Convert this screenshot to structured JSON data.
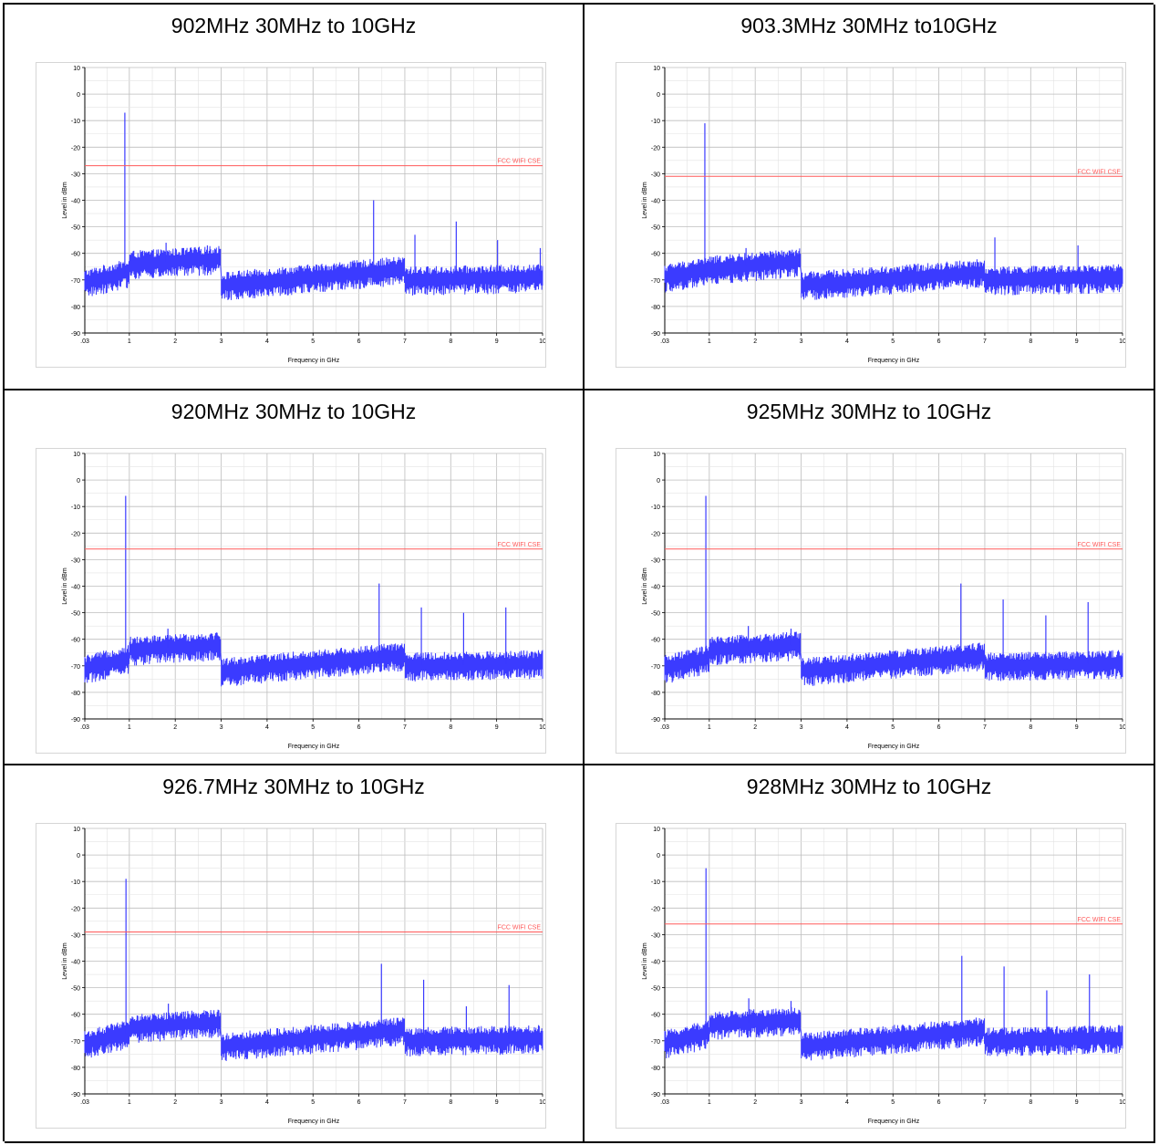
{
  "colors": {
    "trace": "#3b3bff",
    "limit": "#ff5a5a",
    "grid": "#bdbdbd",
    "axis": "#000000"
  },
  "chart_data": [
    {
      "type": "line",
      "title": "902MHz 30MHz to 10GHz",
      "xlabel": "Frequency in GHz",
      "ylabel": "Level in dBm",
      "xlim": [
        0.03,
        10
      ],
      "ylim": [
        -90,
        10
      ],
      "x_ticks": [
        ".03",
        "1",
        "2",
        "3",
        "4",
        "5",
        "6",
        "7",
        "8",
        "9",
        "10"
      ],
      "y_ticks": [
        "10",
        "0",
        "-10",
        "-20",
        "-30",
        "-40",
        "-50",
        "-60",
        "-70",
        "-80",
        "-90"
      ],
      "grid": true,
      "segments": [
        {
          "x": [
            0.03,
            1.0
          ],
          "level": [
            -71,
            -67
          ]
        },
        {
          "x": [
            1.0,
            3.0
          ],
          "level": [
            -64,
            -62
          ]
        },
        {
          "x": [
            3.0,
            7.0
          ],
          "level": [
            -72,
            -66
          ]
        },
        {
          "x": [
            7.0,
            10.0
          ],
          "level": [
            -70,
            -69
          ]
        }
      ],
      "spurs": [
        {
          "x": 0.902,
          "y": -7
        },
        {
          "x": 1.8,
          "y": -56
        },
        {
          "x": 2.7,
          "y": -57
        },
        {
          "x": 6.32,
          "y": -40
        },
        {
          "x": 7.22,
          "y": -53
        },
        {
          "x": 8.12,
          "y": -48
        },
        {
          "x": 9.02,
          "y": -55
        },
        {
          "x": 9.95,
          "y": -58
        }
      ],
      "limit": {
        "name": "FCC WIFI CSE",
        "y": -27
      }
    },
    {
      "type": "line",
      "title": "903.3MHz 30MHz to10GHz",
      "xlabel": "Frequency in GHz",
      "ylabel": "Level in dBm",
      "xlim": [
        0.03,
        10
      ],
      "ylim": [
        -90,
        10
      ],
      "x_ticks": [
        ".03",
        "1",
        "2",
        "3",
        "4",
        "5",
        "6",
        "7",
        "8",
        "9",
        "10"
      ],
      "y_ticks": [
        "10",
        "0",
        "-10",
        "-20",
        "-30",
        "-40",
        "-50",
        "-60",
        "-70",
        "-80",
        "-90"
      ],
      "grid": true,
      "segments": [
        {
          "x": [
            0.03,
            1.0
          ],
          "level": [
            -69,
            -66
          ]
        },
        {
          "x": [
            1.0,
            3.0
          ],
          "level": [
            -66,
            -63
          ]
        },
        {
          "x": [
            3.0,
            7.0
          ],
          "level": [
            -72,
            -67
          ]
        },
        {
          "x": [
            7.0,
            10.0
          ],
          "level": [
            -70,
            -69
          ]
        }
      ],
      "spurs": [
        {
          "x": 0.903,
          "y": -11
        },
        {
          "x": 1.8,
          "y": -58
        },
        {
          "x": 7.22,
          "y": -54
        },
        {
          "x": 9.03,
          "y": -57
        }
      ],
      "limit": {
        "name": "FCC WIFI CSE",
        "y": -31
      }
    },
    {
      "type": "line",
      "title": "920MHz 30MHz to 10GHz",
      "xlabel": "Frequency in GHz",
      "ylabel": "Level in dBm",
      "xlim": [
        0.03,
        10
      ],
      "ylim": [
        -90,
        10
      ],
      "x_ticks": [
        ".03",
        "1",
        "2",
        "3",
        "4",
        "5",
        "6",
        "7",
        "8",
        "9",
        "10"
      ],
      "y_ticks": [
        "10",
        "0",
        "-10",
        "-20",
        "-30",
        "-40",
        "-50",
        "-60",
        "-70",
        "-80",
        "-90"
      ],
      "grid": true,
      "segments": [
        {
          "x": [
            0.03,
            1.0
          ],
          "level": [
            -71,
            -67
          ]
        },
        {
          "x": [
            1.0,
            3.0
          ],
          "level": [
            -64,
            -62
          ]
        },
        {
          "x": [
            3.0,
            7.0
          ],
          "level": [
            -72,
            -66
          ]
        },
        {
          "x": [
            7.0,
            10.0
          ],
          "level": [
            -70,
            -69
          ]
        }
      ],
      "spurs": [
        {
          "x": 0.92,
          "y": -6
        },
        {
          "x": 1.84,
          "y": -56
        },
        {
          "x": 6.44,
          "y": -39
        },
        {
          "x": 7.36,
          "y": -48
        },
        {
          "x": 8.28,
          "y": -50
        },
        {
          "x": 9.2,
          "y": -48
        }
      ],
      "limit": {
        "name": "FCC WIFI CSE",
        "y": -26
      }
    },
    {
      "type": "line",
      "title": "925MHz 30MHz to 10GHz",
      "xlabel": "Frequency in GHz",
      "ylabel": "Level in dBm",
      "xlim": [
        0.03,
        10
      ],
      "ylim": [
        -90,
        10
      ],
      "x_ticks": [
        ".03",
        "1",
        "2",
        "3",
        "4",
        "5",
        "6",
        "7",
        "8",
        "9",
        "10"
      ],
      "y_ticks": [
        "10",
        "0",
        "-10",
        "-20",
        "-30",
        "-40",
        "-50",
        "-60",
        "-70",
        "-80",
        "-90"
      ],
      "grid": true,
      "segments": [
        {
          "x": [
            0.03,
            1.0
          ],
          "level": [
            -71,
            -67
          ]
        },
        {
          "x": [
            1.0,
            3.0
          ],
          "level": [
            -64,
            -62
          ]
        },
        {
          "x": [
            3.0,
            7.0
          ],
          "level": [
            -72,
            -66
          ]
        },
        {
          "x": [
            7.0,
            10.0
          ],
          "level": [
            -70,
            -69
          ]
        }
      ],
      "spurs": [
        {
          "x": 0.925,
          "y": -6
        },
        {
          "x": 1.85,
          "y": -55
        },
        {
          "x": 2.78,
          "y": -56
        },
        {
          "x": 6.48,
          "y": -39
        },
        {
          "x": 7.4,
          "y": -45
        },
        {
          "x": 8.33,
          "y": -51
        },
        {
          "x": 9.25,
          "y": -46
        }
      ],
      "limit": {
        "name": "FCC WIFI CSE",
        "y": -26
      }
    },
    {
      "type": "line",
      "title": "926.7MHz 30MHz to 10GHz",
      "xlabel": "Frequency in GHz",
      "ylabel": "Level in dBm",
      "xlim": [
        0.03,
        10
      ],
      "ylim": [
        -90,
        10
      ],
      "x_ticks": [
        ".03",
        "1",
        "2",
        "3",
        "4",
        "5",
        "6",
        "7",
        "8",
        "9",
        "10"
      ],
      "y_ticks": [
        "10",
        "0",
        "-10",
        "-20",
        "-30",
        "-40",
        "-50",
        "-60",
        "-70",
        "-80",
        "-90"
      ],
      "grid": true,
      "segments": [
        {
          "x": [
            0.03,
            1.0
          ],
          "level": [
            -71,
            -67
          ]
        },
        {
          "x": [
            1.0,
            3.0
          ],
          "level": [
            -65,
            -63
          ]
        },
        {
          "x": [
            3.0,
            7.0
          ],
          "level": [
            -72,
            -66
          ]
        },
        {
          "x": [
            7.0,
            10.0
          ],
          "level": [
            -70,
            -69
          ]
        }
      ],
      "spurs": [
        {
          "x": 0.927,
          "y": -9
        },
        {
          "x": 1.85,
          "y": -56
        },
        {
          "x": 6.49,
          "y": -41
        },
        {
          "x": 7.41,
          "y": -47
        },
        {
          "x": 8.34,
          "y": -57
        },
        {
          "x": 9.27,
          "y": -49
        }
      ],
      "limit": {
        "name": "FCC WIFI CSE",
        "y": -29
      }
    },
    {
      "type": "line",
      "title": "928MHz 30MHz to 10GHz",
      "xlabel": "Frequency in GHz",
      "ylabel": "Level in dBm",
      "xlim": [
        0.03,
        10
      ],
      "ylim": [
        -90,
        10
      ],
      "x_ticks": [
        ".03",
        "1",
        "2",
        "3",
        "4",
        "5",
        "6",
        "7",
        "8",
        "9",
        "10"
      ],
      "y_ticks": [
        "10",
        "0",
        "-10",
        "-20",
        "-30",
        "-40",
        "-50",
        "-60",
        "-70",
        "-80",
        "-90"
      ],
      "grid": true,
      "segments": [
        {
          "x": [
            0.03,
            1.0
          ],
          "level": [
            -71,
            -67
          ]
        },
        {
          "x": [
            1.0,
            3.0
          ],
          "level": [
            -64,
            -62
          ]
        },
        {
          "x": [
            3.0,
            7.0
          ],
          "level": [
            -72,
            -66
          ]
        },
        {
          "x": [
            7.0,
            10.0
          ],
          "level": [
            -70,
            -69
          ]
        }
      ],
      "spurs": [
        {
          "x": 0.928,
          "y": -5
        },
        {
          "x": 1.86,
          "y": -54
        },
        {
          "x": 2.78,
          "y": -55
        },
        {
          "x": 6.5,
          "y": -38
        },
        {
          "x": 7.42,
          "y": -42
        },
        {
          "x": 8.35,
          "y": -51
        },
        {
          "x": 9.28,
          "y": -45
        }
      ],
      "limit": {
        "name": "FCC WIFI CSE",
        "y": -26
      }
    }
  ]
}
